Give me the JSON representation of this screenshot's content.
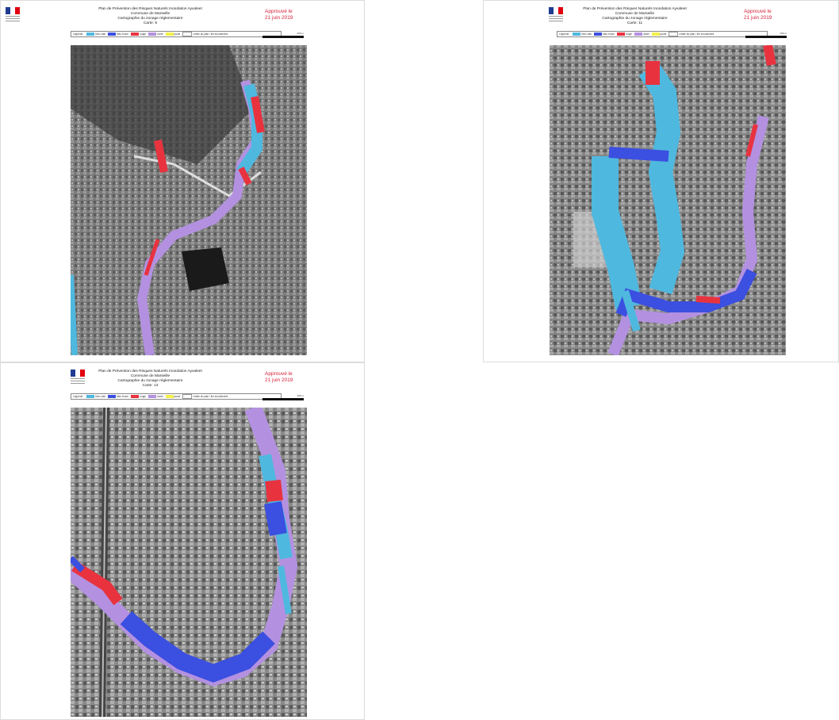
{
  "sheets": [
    {
      "title_lines": [
        "Plan de Prévention des Risques Naturels Inondation Ayvaleet",
        "Commune de Marseille",
        "Cartographie du zonage réglementaire",
        "Carte: 9"
      ],
      "approval": [
        "Approuvé le",
        "21 juin 2019"
      ]
    },
    {
      "title_lines": [
        "Plan de Prévention des Risques Naturels Inondation Ayvaleet",
        "Commune de Marseille",
        "Cartographie du zonage réglementaire",
        "Carte: 11"
      ],
      "approval": [
        "Approuvé le",
        "21 juin 2019"
      ]
    },
    {
      "title_lines": [
        "Plan de Prévention des Risques Naturels Inondation Ayvaleet",
        "Commune de Marseille",
        "Cartographie du zonage réglementaire",
        "Carte: 13"
      ],
      "approval": [
        "Approuvé le",
        "21 juin 2019"
      ]
    }
  ],
  "legend": {
    "title": "Légende",
    "items": [
      {
        "label": "bleu ciair",
        "color": "#4fb8df"
      },
      {
        "label": "bleu foncé",
        "color": "#3b4fe0"
      },
      {
        "label": "rouge",
        "color": "#e8333f"
      },
      {
        "label": "violet",
        "color": "#b391e0"
      },
      {
        "label": "jaune",
        "color": "#f3f04b"
      },
      {
        "label": "Limite du plan / lim ecoulement",
        "color": "#ffffff"
      }
    ]
  },
  "scale_label": "200 m",
  "colors": {
    "light_blue": "#4fb8df",
    "dark_blue": "#3b4fe0",
    "red": "#e8333f",
    "violet": "#b391e0",
    "flag_blue": "#1f3c92",
    "flag_red": "#e1000f",
    "approval_red": "#d6213a"
  }
}
